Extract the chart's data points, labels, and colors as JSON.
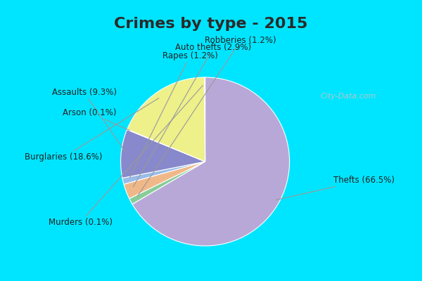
{
  "title": "Crimes by type - 2015",
  "title_fontsize": 16,
  "title_fontweight": "bold",
  "title_color": "#2a2a2a",
  "slices": [
    {
      "label": "Thefts (66.5%)",
      "value": 66.5,
      "color": "#b8a8d8"
    },
    {
      "label": "Robberies (1.2%)",
      "value": 1.2,
      "color": "#88cc99"
    },
    {
      "label": "Auto thefts (2.9%)",
      "value": 2.9,
      "color": "#f0b888"
    },
    {
      "label": "Rapes (1.2%)",
      "value": 1.2,
      "color": "#99bce8"
    },
    {
      "label": "Assaults (9.3%)",
      "value": 9.3,
      "color": "#8888cc"
    },
    {
      "label": "Arson (0.1%)",
      "value": 0.1,
      "color": "#e8a8a8"
    },
    {
      "label": "Burglaries (18.6%)",
      "value": 18.6,
      "color": "#eef08a"
    },
    {
      "label": "Murders (0.1%)",
      "value": 0.1,
      "color": "#c8e8d8"
    }
  ],
  "outer_bg": "#00e5ff",
  "inner_bg": "#d5edd5",
  "label_fontsize": 8.5,
  "watermark": "City-Data.com",
  "watermark_color": "#b0c8c8"
}
